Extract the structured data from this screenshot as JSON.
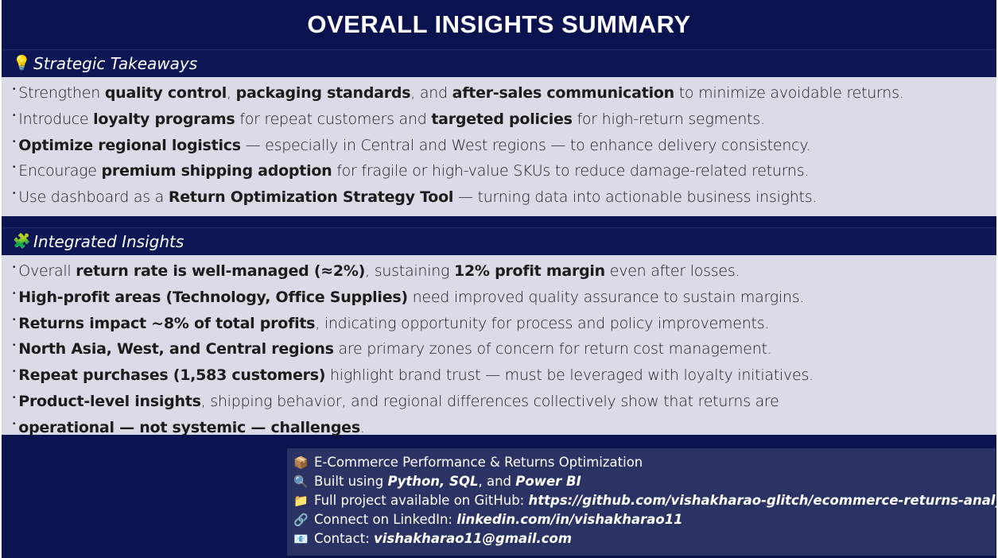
{
  "title": "OVERALL INSIGHTS SUMMARY",
  "strategic": {
    "icon": "lightbulb-icon",
    "heading": "Strategic Takeaways",
    "items": [
      [
        {
          "t": "Strengthen "
        },
        {
          "t": "quality control",
          "b": true
        },
        {
          "t": ", "
        },
        {
          "t": "packaging standards",
          "b": true
        },
        {
          "t": ", and "
        },
        {
          "t": "after-sales communication",
          "b": true
        },
        {
          "t": " to minimize avoidable returns."
        }
      ],
      [
        {
          "t": "Introduce "
        },
        {
          "t": "loyalty programs",
          "b": true
        },
        {
          "t": " for repeat customers and "
        },
        {
          "t": "targeted policies",
          "b": true
        },
        {
          "t": " for high-return segments."
        }
      ],
      [
        {
          "t": "Optimize regional logistics",
          "b": true
        },
        {
          "t": " — especially in Central and West regions — to enhance delivery consistency."
        }
      ],
      [
        {
          "t": "Encourage "
        },
        {
          "t": "premium shipping adoption",
          "b": true
        },
        {
          "t": " for fragile or high-value SKUs to reduce damage-related returns."
        }
      ],
      [
        {
          "t": "Use dashboard as a "
        },
        {
          "t": "Return Optimization Strategy Tool",
          "b": true
        },
        {
          "t": " — turning data into actionable business insights."
        }
      ]
    ]
  },
  "integrated": {
    "icon": "puzzle-piece-icon",
    "heading": "Integrated Insights",
    "items": [
      [
        {
          "t": "Overall "
        },
        {
          "t": "return rate is well-managed (≈2%)",
          "b": true
        },
        {
          "t": ", sustaining "
        },
        {
          "t": "12% profit margin",
          "b": true
        },
        {
          "t": " even after losses."
        }
      ],
      [
        {
          "t": "High-profit areas (Technology, Office Supplies)",
          "b": true
        },
        {
          "t": " need improved quality assurance to sustain margins."
        }
      ],
      [
        {
          "t": "Returns impact ~8% of total profits",
          "b": true
        },
        {
          "t": ", indicating opportunity for process and policy improvements."
        }
      ],
      [
        {
          "t": "North Asia, West, and Central regions",
          "b": true
        },
        {
          "t": " are primary zones of concern for return cost management."
        }
      ],
      [
        {
          "t": "Repeat purchases (1,583 customers)",
          "b": true
        },
        {
          "t": " highlight brand trust — must be leveraged with loyalty initiatives."
        }
      ],
      [
        {
          "t": "Product-level insights",
          "b": true
        },
        {
          "t": ", shipping behavior, and regional differences collectively show that returns are"
        }
      ],
      [
        {
          "t": "operational — not systemic — challenges",
          "b": true
        },
        {
          "t": "."
        }
      ]
    ]
  },
  "footer": {
    "items": [
      {
        "icon": "package-icon",
        "glyph": "📦",
        "parts": [
          {
            "t": "E-Commerce Performance & Returns Optimization"
          }
        ]
      },
      {
        "icon": "magnifier-icon",
        "glyph": "🔍",
        "parts": [
          {
            "t": "Built using "
          },
          {
            "t": "Python, SQL",
            "b": true
          },
          {
            "t": ", and "
          },
          {
            "t": "Power BI",
            "b": true
          }
        ]
      },
      {
        "icon": "folder-icon",
        "glyph": "📁",
        "parts": [
          {
            "t": "Full project available on GitHub: "
          },
          {
            "t": "https://github.com/vishakharao-glitch/ecommerce-returns-analysis",
            "b": true
          }
        ]
      },
      {
        "icon": "link-icon",
        "glyph": "🔗",
        "parts": [
          {
            "t": "Connect on LinkedIn: "
          },
          {
            "t": "linkedin.com/in/vishakharao11",
            "b": true
          }
        ]
      },
      {
        "icon": "email-icon",
        "glyph": "📧",
        "parts": [
          {
            "t": "Contact: "
          },
          {
            "t": "vishakharao11@gmail.com",
            "b": true
          }
        ]
      }
    ]
  }
}
